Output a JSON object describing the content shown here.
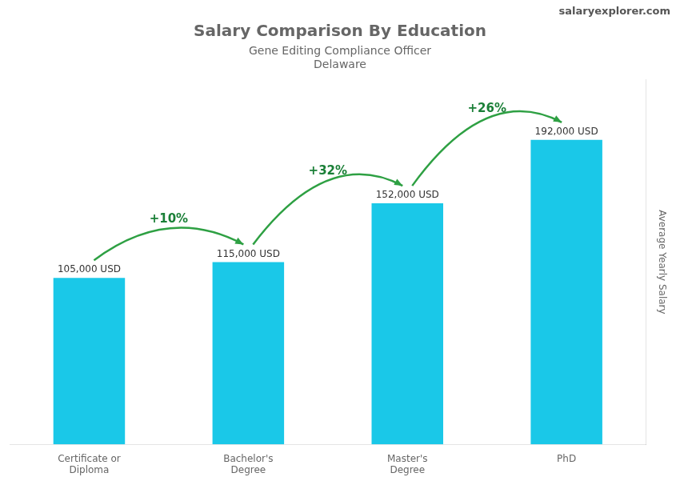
{
  "chart_data": {
    "type": "bar",
    "title": "Salary Comparison By Education",
    "subtitle": "Gene Editing Compliance Officer",
    "location": "Delaware",
    "brand": "salaryexplorer.com",
    "ylabel": "Average Yearly Salary",
    "categories": [
      "Certificate or\nDiploma",
      "Bachelor's\nDegree",
      "Master's\nDegree",
      "PhD"
    ],
    "values": [
      105000,
      115000,
      152000,
      192000
    ],
    "value_labels": [
      "105,000 USD",
      "115,000 USD",
      "152,000 USD",
      "192,000 USD"
    ],
    "data_labels": true,
    "annotations": [
      "+10%",
      "+32%",
      "+26%"
    ],
    "color": "#1ac8e8",
    "ylim": [
      0,
      230000
    ],
    "grid": false,
    "tick_labels": "x"
  }
}
